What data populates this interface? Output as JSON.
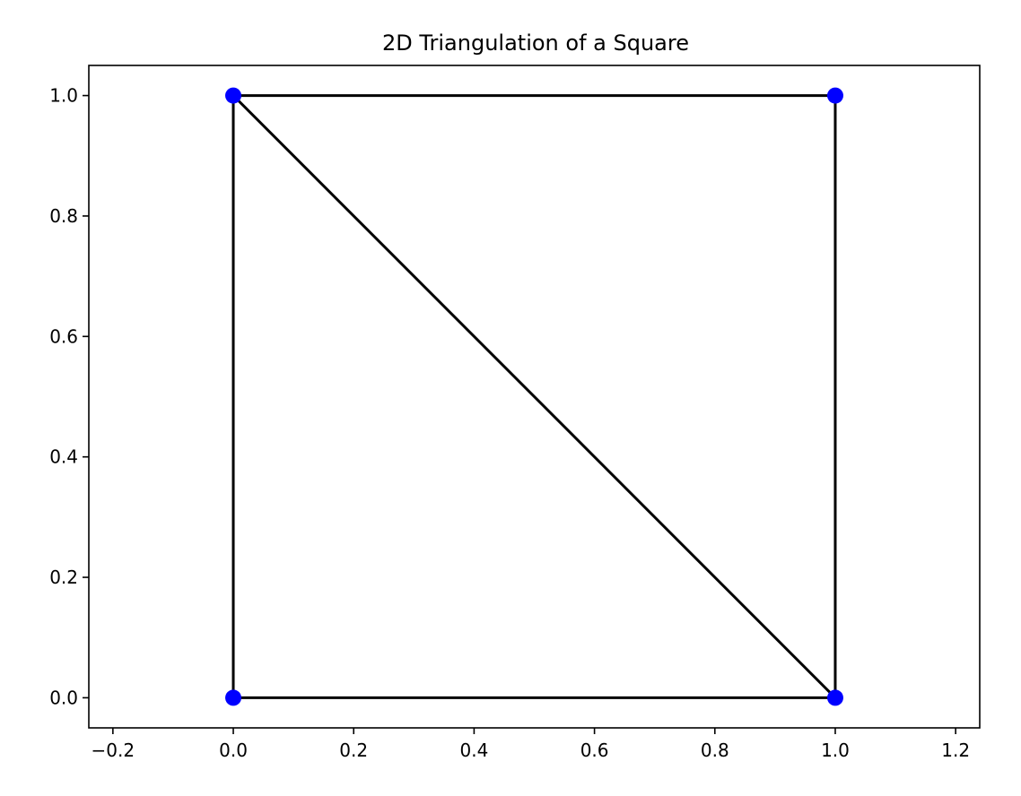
{
  "chart_data": {
    "type": "line",
    "title": "2D Triangulation of a Square",
    "xlabel": "",
    "ylabel": "",
    "xlim": [
      -0.24,
      1.24
    ],
    "ylim": [
      -0.05,
      1.05
    ],
    "x_ticks": [
      -0.2,
      0.0,
      0.2,
      0.4,
      0.6,
      0.8,
      1.0,
      1.2
    ],
    "x_tick_labels": [
      "−0.2",
      "0.0",
      "0.2",
      "0.4",
      "0.6",
      "0.8",
      "1.0",
      "1.2"
    ],
    "y_ticks": [
      0.0,
      0.2,
      0.4,
      0.6,
      0.8,
      1.0
    ],
    "y_tick_labels": [
      "0.0",
      "0.2",
      "0.4",
      "0.6",
      "0.8",
      "1.0"
    ],
    "grid": false,
    "points": [
      {
        "x": 0,
        "y": 0
      },
      {
        "x": 1,
        "y": 0
      },
      {
        "x": 0,
        "y": 1
      },
      {
        "x": 1,
        "y": 1
      }
    ],
    "edges": [
      [
        [
          0,
          0
        ],
        [
          1,
          0
        ]
      ],
      [
        [
          1,
          0
        ],
        [
          1,
          1
        ]
      ],
      [
        [
          1,
          1
        ],
        [
          0,
          1
        ]
      ],
      [
        [
          0,
          1
        ],
        [
          0,
          0
        ]
      ],
      [
        [
          0,
          1
        ],
        [
          1,
          0
        ]
      ]
    ],
    "colors": {
      "edge": "#000000",
      "point": "#0000ff"
    }
  }
}
